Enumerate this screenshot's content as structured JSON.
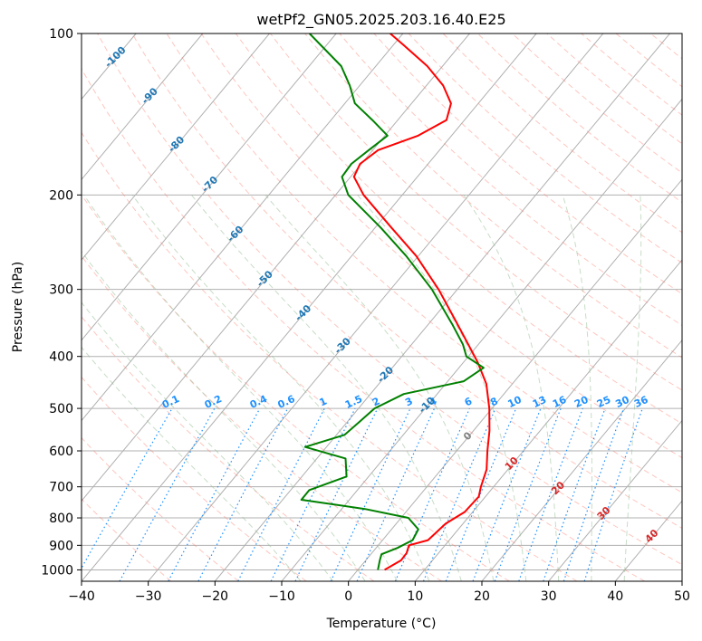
{
  "chart_data": {
    "type": "line",
    "subtype": "skew-t log-p diagram",
    "title": "wetPf2_GN05.2025.203.16.40.E25",
    "xlabel": "Temperature (°C)",
    "ylabel": "Pressure (hPa)",
    "xlim": [
      -40,
      50
    ],
    "ylim": [
      1050,
      100
    ],
    "y_scale": "log",
    "x_ticks": [
      -40,
      -30,
      -20,
      -10,
      0,
      10,
      20,
      30,
      40,
      50
    ],
    "y_ticks": [
      100,
      200,
      300,
      400,
      500,
      600,
      700,
      800,
      900,
      1000
    ],
    "grid": true,
    "series": [
      {
        "color": "#ff0000",
        "points": [
          {
            "p": 1000,
            "t": 4.0
          },
          {
            "p": 960,
            "t": 5.3
          },
          {
            "p": 930,
            "t": 5.2
          },
          {
            "p": 900,
            "t": 4.6
          },
          {
            "p": 880,
            "t": 6.8
          },
          {
            "p": 860,
            "t": 7.0
          },
          {
            "p": 820,
            "t": 7.4
          },
          {
            "p": 780,
            "t": 8.8
          },
          {
            "p": 730,
            "t": 9.0
          },
          {
            "p": 700,
            "t": 8.1
          },
          {
            "p": 650,
            "t": 6.8
          },
          {
            "p": 600,
            "t": 4.6
          },
          {
            "p": 550,
            "t": 2.4
          },
          {
            "p": 500,
            "t": -0.4
          },
          {
            "p": 450,
            "t": -3.9
          },
          {
            "p": 410,
            "t": -7.9
          },
          {
            "p": 380,
            "t": -11.5
          },
          {
            "p": 340,
            "t": -16.8
          },
          {
            "p": 300,
            "t": -22.8
          },
          {
            "p": 260,
            "t": -30.3
          },
          {
            "p": 230,
            "t": -37.6
          },
          {
            "p": 200,
            "t": -45.8
          },
          {
            "p": 185,
            "t": -49.5
          },
          {
            "p": 175,
            "t": -50.2
          },
          {
            "p": 165,
            "t": -49.2
          },
          {
            "p": 155,
            "t": -45.0
          },
          {
            "p": 145,
            "t": -42.7
          },
          {
            "p": 135,
            "t": -44.1
          },
          {
            "p": 125,
            "t": -47.5
          },
          {
            "p": 115,
            "t": -52.3
          },
          {
            "p": 105,
            "t": -58.5
          },
          {
            "p": 100,
            "t": -61.9
          }
        ]
      },
      {
        "color": "#008000",
        "points": [
          {
            "p": 1000,
            "t": 3.0
          },
          {
            "p": 960,
            "t": 2.1
          },
          {
            "p": 935,
            "t": 1.6
          },
          {
            "p": 910,
            "t": 3.2
          },
          {
            "p": 880,
            "t": 4.5
          },
          {
            "p": 840,
            "t": 4.0
          },
          {
            "p": 800,
            "t": 1.1
          },
          {
            "p": 770,
            "t": -6.5
          },
          {
            "p": 740,
            "t": -17.2
          },
          {
            "p": 710,
            "t": -17.2
          },
          {
            "p": 670,
            "t": -13.3
          },
          {
            "p": 620,
            "t": -15.7
          },
          {
            "p": 590,
            "t": -23.2
          },
          {
            "p": 560,
            "t": -18.8
          },
          {
            "p": 530,
            "t": -18.2
          },
          {
            "p": 500,
            "t": -17.6
          },
          {
            "p": 470,
            "t": -15.0
          },
          {
            "p": 445,
            "t": -7.6
          },
          {
            "p": 420,
            "t": -6.3
          },
          {
            "p": 400,
            "t": -10.3
          },
          {
            "p": 380,
            "t": -12.3
          },
          {
            "p": 350,
            "t": -16.2
          },
          {
            "p": 300,
            "t": -23.8
          },
          {
            "p": 260,
            "t": -31.8
          },
          {
            "p": 230,
            "t": -39.2
          },
          {
            "p": 200,
            "t": -48.1
          },
          {
            "p": 185,
            "t": -51.3
          },
          {
            "p": 175,
            "t": -51.5
          },
          {
            "p": 165,
            "t": -50.6
          },
          {
            "p": 155,
            "t": -49.6
          },
          {
            "p": 145,
            "t": -53.8
          },
          {
            "p": 135,
            "t": -58.5
          },
          {
            "p": 125,
            "t": -61.5
          },
          {
            "p": 115,
            "t": -65.2
          },
          {
            "p": 100,
            "t": -74.0
          }
        ]
      }
    ],
    "reference_lines": {
      "dry_adiabats": {
        "color": "#fa8072",
        "style": "dashed"
      },
      "moist_adiabats": {
        "color": "#8fbc8f",
        "style": "dashed"
      },
      "mixing_ratio": {
        "color": "#1e90ff",
        "style": "dotted",
        "labels": [
          "0.1",
          "0.2",
          "0.4",
          "0.6",
          "1",
          "1.5",
          "2",
          "3",
          "4",
          "6",
          "8",
          "10",
          "13",
          "16",
          "20",
          "25",
          "30",
          "36"
        ]
      },
      "isotherms": {
        "color": "#808080",
        "style": "solid"
      },
      "isotherm_labels": [
        {
          "text": "-100",
          "color": "#1f77b4"
        },
        {
          "text": "-90",
          "color": "#1f77b4"
        },
        {
          "text": "-80",
          "color": "#1f77b4"
        },
        {
          "text": "-70",
          "color": "#1f77b4"
        },
        {
          "text": "-60",
          "color": "#1f77b4"
        },
        {
          "text": "-50",
          "color": "#1f77b4"
        },
        {
          "text": "-40",
          "color": "#1f77b4"
        },
        {
          "text": "-30",
          "color": "#1f77b4"
        },
        {
          "text": "-20",
          "color": "#1f77b4"
        },
        {
          "text": "-10",
          "color": "#1f77b4"
        },
        {
          "text": "0",
          "color": "#808080"
        },
        {
          "text": "10",
          "color": "#d62728"
        },
        {
          "text": "20",
          "color": "#d62728"
        },
        {
          "text": "30",
          "color": "#d62728"
        },
        {
          "text": "40",
          "color": "#d62728"
        }
      ]
    }
  }
}
